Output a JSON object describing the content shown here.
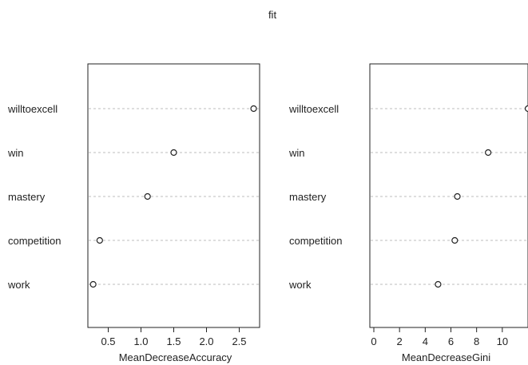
{
  "title": "fit",
  "chart_data": [
    {
      "type": "scatter",
      "variant": "dot-chart",
      "xlabel": "MeanDecreaseAccuracy",
      "xlim": [
        0.25,
        2.75
      ],
      "xticks": [
        "0.5",
        "1.0",
        "1.5",
        "2.0",
        "2.5"
      ],
      "tick_values": [
        0.5,
        1.0,
        1.5,
        2.0,
        2.5
      ],
      "categories": [
        "willtoexcell",
        "win",
        "mastery",
        "competition",
        "work"
      ],
      "values": [
        2.72,
        1.5,
        1.1,
        0.37,
        0.27
      ],
      "grid": "dashed horizontal guide per category",
      "marker": "open circle"
    },
    {
      "type": "scatter",
      "variant": "dot-chart",
      "xlabel": "MeanDecreaseGini",
      "xlim": [
        0,
        12
      ],
      "xticks": [
        "0",
        "2",
        "4",
        "6",
        "8",
        "10"
      ],
      "tick_values": [
        0,
        2,
        4,
        6,
        8,
        10
      ],
      "categories": [
        "willtoexcell",
        "win",
        "mastery",
        "competition",
        "work"
      ],
      "values": [
        12.0,
        8.9,
        6.5,
        6.3,
        5.0
      ],
      "grid": "dashed horizontal guide per category",
      "marker": "open circle"
    }
  ]
}
